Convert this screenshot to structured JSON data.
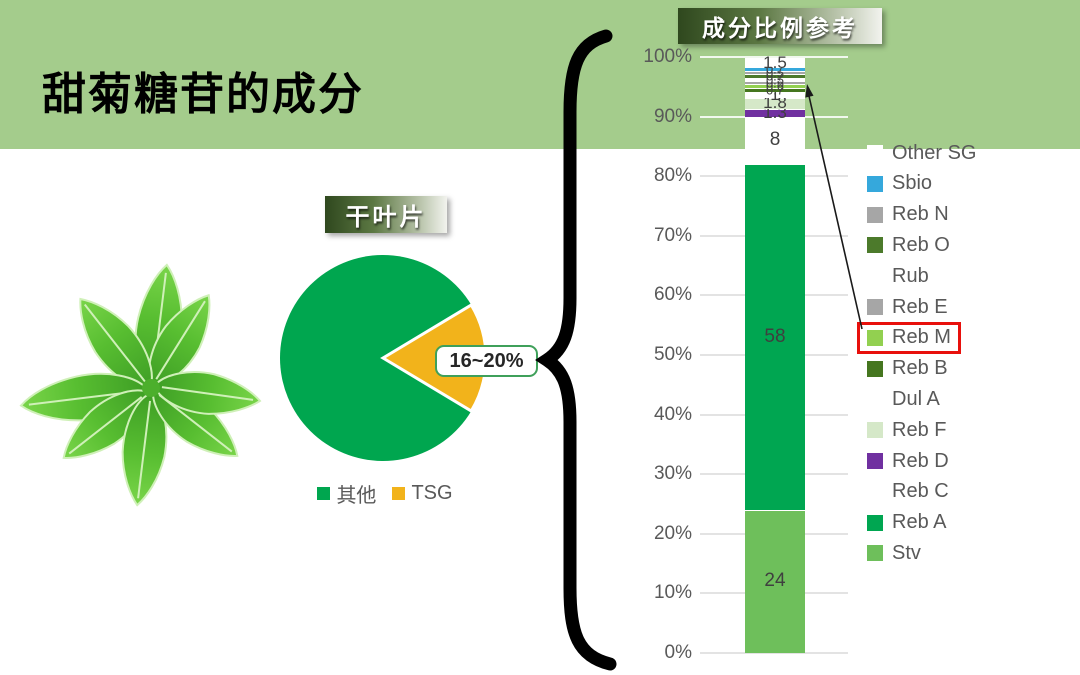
{
  "slide": {
    "title": "甜菊糖苷的成分",
    "band_color": "#A4CC8C"
  },
  "pie_section": {
    "banner": "干叶片",
    "callout": "16~20%",
    "legend": [
      {
        "label": "其他",
        "color": "#00A64F"
      },
      {
        "label": "TSG",
        "color": "#F2B31B"
      }
    ]
  },
  "bar_section": {
    "banner": "成分比例参考"
  },
  "icons": {
    "brace": "left-curly-brace",
    "arrow": "callout-arrow-to-reb-m-segment",
    "leaf": "stevia-leaf-photo"
  },
  "chart_data": [
    {
      "type": "pie",
      "title": "干叶片",
      "slices": [
        {
          "label": "其他",
          "value": 83,
          "color": "#00A64F"
        },
        {
          "label": "TSG",
          "value": 17,
          "color": "#F2B31B",
          "annotation": "16~20%"
        }
      ],
      "legend_position": "bottom",
      "note": "TSG wedge spans roughly -31° to +31° on the right side"
    },
    {
      "type": "bar",
      "subtype": "single_stacked_column",
      "title": "成分比例参考",
      "xlabel": "",
      "ylabel": "",
      "ylim": [
        0,
        100
      ],
      "grid": true,
      "yticks": [
        "0%",
        "10%",
        "20%",
        "30%",
        "40%",
        "50%",
        "60%",
        "70%",
        "80%",
        "90%",
        "100%"
      ],
      "stack_bottom_to_top": [
        {
          "name": "Stv",
          "value": 24,
          "label": "24",
          "color": "#6EBF5B"
        },
        {
          "name": "Reb A",
          "value": 58,
          "label": "58",
          "color": "#00A651"
        },
        {
          "name": "Reb C",
          "value": 8,
          "label": "8",
          "color": "#FFFFFF"
        },
        {
          "name": "Reb D",
          "value": 1.3,
          "label": "1.3",
          "color": "#7030A0"
        },
        {
          "name": "Reb F",
          "value": 1.8,
          "label": "1.8",
          "color": "#D5E8C8"
        },
        {
          "name": "Dul A",
          "value": 1,
          "label": "1",
          "color": "#FFFFFF"
        },
        {
          "name": "Reb B",
          "value": 0.7,
          "label": "0.7",
          "color": "#45761F"
        },
        {
          "name": "Reb M",
          "value": 0.6,
          "label": "0.6",
          "color": "#92D050"
        },
        {
          "name": "Reb E",
          "value": 0.5,
          "label": "0.5",
          "color": "#A6A6A6"
        },
        {
          "name": "Rub",
          "value": 0.5,
          "label": "0.5",
          "color": "#FFFFFF"
        },
        {
          "name": "Reb O",
          "value": 0.7,
          "label": "0.7",
          "color": "#4C7A2B"
        },
        {
          "name": "Reb N",
          "value": 0.5,
          "label": "0.5",
          "color": "#A6A6A6"
        },
        {
          "name": "Sbio",
          "value": 0.7,
          "label": "0.7",
          "color": "#35A8DC"
        },
        {
          "name": "Other SG",
          "value": 1.5,
          "label": "1.5",
          "color": "#FFFFFF"
        }
      ],
      "legend_top_to_bottom": [
        {
          "name": "Other SG",
          "color": "#FFFFFF"
        },
        {
          "name": "Sbio",
          "color": "#35A8DC"
        },
        {
          "name": "Reb N",
          "color": "#A6A6A6"
        },
        {
          "name": "Reb O",
          "color": "#4C7A2B"
        },
        {
          "name": "Rub",
          "color": "#FFFFFF"
        },
        {
          "name": "Reb E",
          "color": "#A6A6A6"
        },
        {
          "name": "Reb M",
          "color": "#92D050"
        },
        {
          "name": "Reb B",
          "color": "#45761F"
        },
        {
          "name": "Dul A",
          "color": "#FFFFFF"
        },
        {
          "name": "Reb F",
          "color": "#D5E8C8"
        },
        {
          "name": "Reb D",
          "color": "#7030A0"
        },
        {
          "name": "Reb C",
          "color": "#FFFFFF"
        },
        {
          "name": "Reb A",
          "color": "#00A651"
        },
        {
          "name": "Stv",
          "color": "#6EBF5B"
        }
      ],
      "highlighted_legend": "Reb M",
      "highlight_color": "#E8100C"
    }
  ]
}
